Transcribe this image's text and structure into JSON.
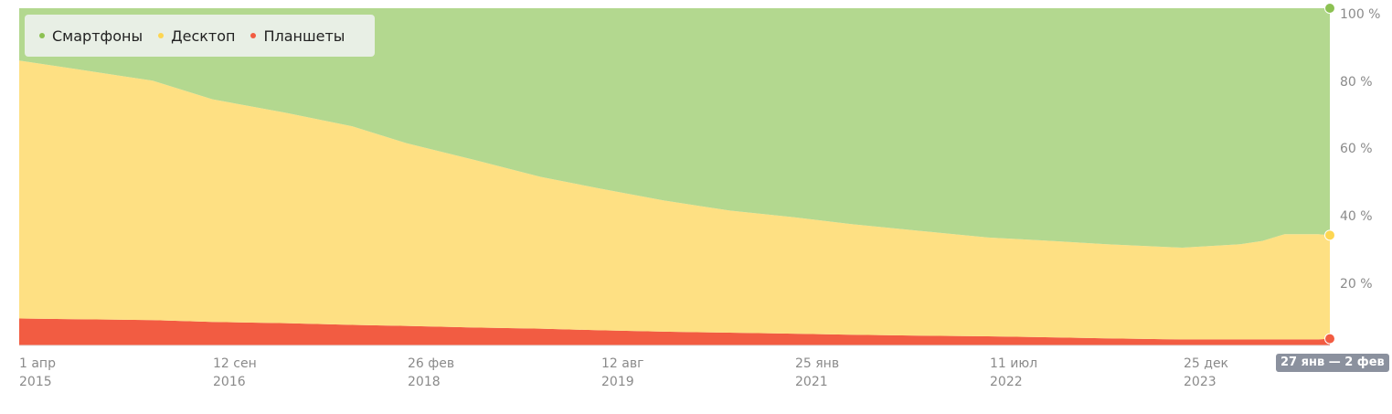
{
  "legend": [
    {
      "label": "Смартфоны",
      "color": "#8cc152"
    },
    {
      "label": "Десктоп",
      "color": "#fdd652"
    },
    {
      "label": "Планшеты",
      "color": "#f25c42"
    }
  ],
  "range_badge": "27 янв — 2 фев",
  "chart_data": {
    "type": "area",
    "stacked": true,
    "percent_stacked": true,
    "title": "",
    "xlabel": "",
    "ylabel": "",
    "ylim": [
      0,
      100
    ],
    "grid": false,
    "legend_position": "top-left",
    "y_ticks": [
      "20 %",
      "40 %",
      "60 %",
      "80 %",
      "100 %"
    ],
    "x_ticks": [
      {
        "date": "2015-04-01",
        "line1": "1 апр",
        "line2": "2015"
      },
      {
        "date": "2016-09-12",
        "line1": "12 сен",
        "line2": "2016"
      },
      {
        "date": "2018-02-26",
        "line1": "26 фев",
        "line2": "2018"
      },
      {
        "date": "2019-08-12",
        "line1": "12 авг",
        "line2": "2019"
      },
      {
        "date": "2021-01-25",
        "line1": "25 янв",
        "line2": "2021"
      },
      {
        "date": "2022-07-11",
        "line1": "11 июл",
        "line2": "2022"
      },
      {
        "date": "2023-12-25",
        "line1": "25 дек",
        "line2": "2023"
      }
    ],
    "x": [
      "2015-04-01",
      "2015-09-01",
      "2016-04-01",
      "2016-09-12",
      "2017-04-01",
      "2017-10-01",
      "2018-02-26",
      "2018-09-01",
      "2019-03-01",
      "2019-08-12",
      "2020-02-01",
      "2020-08-01",
      "2021-01-25",
      "2021-07-01",
      "2022-01-01",
      "2022-07-11",
      "2023-01-01",
      "2023-06-01",
      "2023-12-25",
      "2024-06-01",
      "2024-08-01",
      "2024-10-01",
      "2025-01-01",
      "2025-02-02"
    ],
    "series": [
      {
        "name": "Планшеты",
        "color": "#f25c42",
        "values": [
          8,
          7.8,
          7.5,
          7,
          6.6,
          6.1,
          5.8,
          5.3,
          5,
          4.5,
          4.1,
          3.8,
          3.5,
          3.2,
          2.9,
          2.7,
          2.4,
          2.1,
          1.8,
          1.8,
          1.8,
          1.8,
          1.8,
          2
        ]
      },
      {
        "name": "Десктоп",
        "color": "#fee083",
        "values": [
          76.5,
          74.2,
          71,
          66,
          62.4,
          58.9,
          54.2,
          49.7,
          45,
          42,
          38.9,
          36.2,
          34.5,
          32.8,
          31.1,
          29.3,
          28.6,
          27.9,
          27.2,
          28.2,
          29.2,
          31.2,
          31.2,
          30.7
        ]
      },
      {
        "name": "Смартфоны",
        "color": "#b3d88f",
        "values": [
          15.5,
          18,
          21.5,
          27,
          31,
          35,
          40,
          45,
          50,
          53.5,
          57,
          60,
          62,
          64,
          66,
          68,
          69,
          70,
          71,
          70,
          69,
          67,
          67,
          67.3
        ]
      }
    ]
  }
}
